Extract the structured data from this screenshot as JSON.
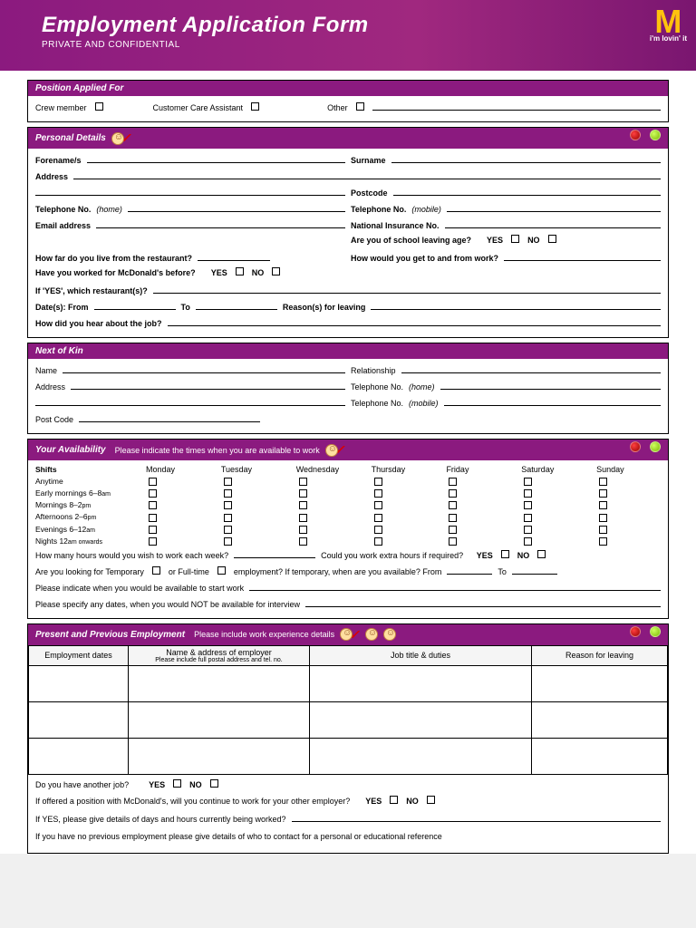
{
  "header": {
    "title": "Employment Application Form",
    "subtitle": "PRIVATE AND CONFIDENTIAL",
    "tagline": "i'm lovin' it"
  },
  "colors": {
    "brand_purple": "#8b1a7f",
    "logo_yellow": "#ffc20e"
  },
  "sections": {
    "position": {
      "title": "Position Applied For",
      "opts": [
        "Crew member",
        "Customer Care Assistant",
        "Other"
      ]
    },
    "personal": {
      "title": "Personal Details",
      "forename": "Forename/s",
      "surname": "Surname",
      "address": "Address",
      "postcode": "Postcode",
      "tel_home": "Telephone No.",
      "tel_home_note": "(home)",
      "tel_mob": "Telephone No.",
      "tel_mob_note": "(mobile)",
      "email": "Email address",
      "ni": "National Insurance No.",
      "school_age": "Are you of school leaving age?",
      "yes": "YES",
      "no": "NO",
      "howfar": "How far do you live from the restaurant?",
      "howget": "How would you get to and from work?",
      "workedbefore": "Have you worked for McDonald's before?",
      "ifyes": "If 'YES', which restaurant(s)?",
      "dates_from": "Date(s): From",
      "dates_to": "To",
      "reason": "Reason(s) for leaving",
      "hear": "How did you hear about the job?"
    },
    "kin": {
      "title": "Next of Kin",
      "name": "Name",
      "relationship": "Relationship",
      "address": "Address",
      "tel_home": "Telephone No.",
      "tel_home_note": "(home)",
      "tel_mob": "Telephone No.",
      "tel_mob_note": "(mobile)",
      "postcode": "Post Code"
    },
    "avail": {
      "title": "Your Availability",
      "sub": "Please indicate the times when you are available to work",
      "shifts_hdr": "Shifts",
      "days": [
        "Monday",
        "Tuesday",
        "Wednesday",
        "Thursday",
        "Friday",
        "Saturday",
        "Sunday"
      ],
      "rows": [
        "Anytime",
        "Early mornings 6–8",
        "Mornings 8–2",
        "Afternoons 2–6",
        "Evenings 6–12",
        "Nights 12"
      ],
      "row_suffix": [
        "",
        "am",
        "pm",
        "pm",
        "am",
        "am onwards"
      ],
      "q_hours": "How many hours would you wish to work each week?",
      "q_extra": "Could you work extra hours if required?",
      "q_temp": "Are you looking for Temporary",
      "q_temp2": "or Full-time",
      "q_temp3": "employment? If temporary, when are you available? From",
      "q_temp4": "To",
      "q_start": "Please indicate when you would be available to start work",
      "q_notavail": "Please specify any dates, when you would NOT be available for interview"
    },
    "emp": {
      "title": "Present and Previous Employment",
      "sub": "Please include work experience details",
      "cols": [
        "Employment dates",
        "Name & address of employer",
        "Job title & duties",
        "Reason for leaving"
      ],
      "col2sub": "Please include full postal address and tel. no.",
      "q_another": "Do you have another job?",
      "q_offered": "If offered a position with McDonald's, will you continue to work for your other employer?",
      "q_ifyes": "If YES, please give details of days and hours currently being worked?",
      "q_noprev": "If you have no previous employment please give details of who to contact for a personal or educational reference"
    }
  }
}
